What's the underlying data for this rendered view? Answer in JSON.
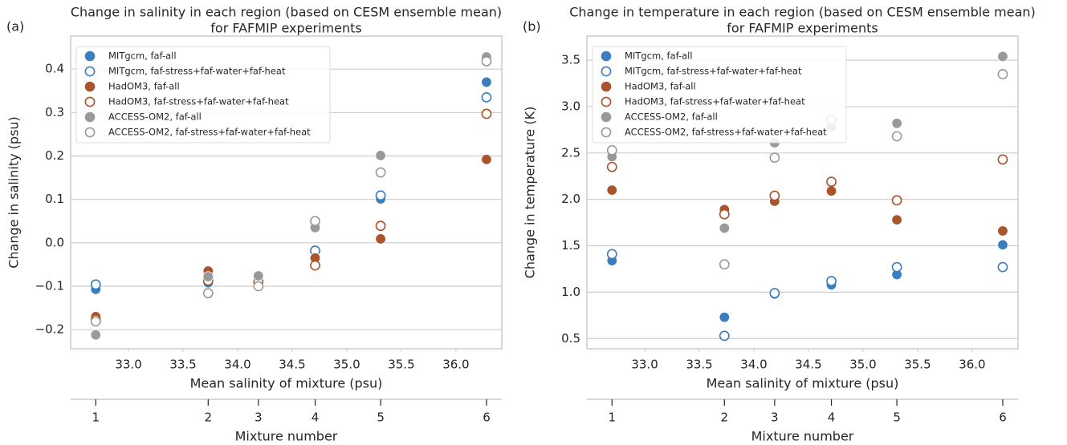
{
  "chart_data": [
    {
      "type": "scatter",
      "panel_label": "(a)",
      "title": [
        "Change in salinity in each region (based on CESM ensemble mean)",
        "for FAFMIP experiments"
      ],
      "xlabel": "Mean salinity of mixture (psu)",
      "ylabel": "Change in salinity (psu)",
      "x2label": "Mixture number",
      "x": [
        32.7,
        33.73,
        34.19,
        34.71,
        35.31,
        36.28
      ],
      "xlim": [
        32.47,
        36.42
      ],
      "xticks": [
        {
          "value": 33,
          "label": "33.0"
        },
        33.5,
        {
          "value": 34,
          "label": "34.0"
        },
        34.5,
        {
          "value": 35,
          "label": "35.0"
        },
        35.5,
        {
          "value": 36,
          "label": "36.0"
        }
      ],
      "x2ticks": [
        {
          "value": 32.7,
          "label": "1"
        },
        {
          "value": 33.73,
          "label": "2"
        },
        {
          "value": 34.19,
          "label": "3"
        },
        {
          "value": 34.71,
          "label": "4"
        },
        {
          "value": 35.31,
          "label": "5"
        },
        {
          "value": 36.28,
          "label": "6"
        }
      ],
      "ylim": [
        -0.244,
        0.476
      ],
      "yticks": [
        {
          "value": -0.2,
          "label": "−0.2"
        },
        {
          "value": -0.1,
          "label": "−0.1"
        },
        {
          "value": 0,
          "label": "0.0"
        },
        0.1,
        0.2,
        0.3,
        0.4
      ],
      "grid": true,
      "legend": "upper left",
      "series": [
        {
          "name": "MITgcm, faf-all",
          "color": "#3a7ebf",
          "marker": "filled",
          "values": [
            -0.107,
            -0.092,
            -0.078,
            -0.035,
            0.101,
            0.37
          ]
        },
        {
          "name": "MITgcm, faf-stress+faf-water+faf-heat",
          "color": "#3a7ebf",
          "marker": "open",
          "values": [
            -0.096,
            -0.083,
            -0.078,
            -0.018,
            0.109,
            0.335
          ]
        },
        {
          "name": "HadOM3, faf-all",
          "color": "#a9542a",
          "marker": "filled",
          "values": [
            -0.17,
            -0.065,
            -0.087,
            -0.035,
            0.009,
            0.192
          ]
        },
        {
          "name": "HadOM3, faf-stress+faf-water+faf-heat",
          "color": "#a9542a",
          "marker": "open",
          "values": [
            -0.177,
            -0.087,
            -0.09,
            -0.052,
            0.039,
            0.297
          ]
        },
        {
          "name": "ACCESS-OM2, faf-all",
          "color": "#999999",
          "marker": "filled",
          "values": [
            -0.212,
            -0.078,
            -0.076,
            0.035,
            0.201,
            0.428
          ]
        },
        {
          "name": "ACCESS-OM2, faf-stress+faf-water+faf-heat",
          "color": "#999999",
          "marker": "open",
          "values": [
            -0.181,
            -0.116,
            -0.1,
            0.05,
            0.162,
            0.418
          ]
        }
      ]
    },
    {
      "type": "scatter",
      "panel_label": "(b)",
      "title": [
        "Change in temperature in each region (based on CESM ensemble mean)",
        "for FAFMIP experiments"
      ],
      "xlabel": "Mean salinity of mixture (psu)",
      "ylabel": "Change in temperature (K)",
      "x2label": "Mixture number",
      "x": [
        32.7,
        33.73,
        34.19,
        34.71,
        35.31,
        36.28
      ],
      "xlim": [
        32.47,
        36.42
      ],
      "xticks": [
        {
          "value": 33,
          "label": "33.0"
        },
        33.5,
        {
          "value": 34,
          "label": "34.0"
        },
        34.5,
        {
          "value": 35,
          "label": "35.0"
        },
        35.5,
        {
          "value": 36,
          "label": "36.0"
        }
      ],
      "x2ticks": [
        {
          "value": 32.7,
          "label": "1"
        },
        {
          "value": 33.73,
          "label": "2"
        },
        {
          "value": 34.19,
          "label": "3"
        },
        {
          "value": 34.71,
          "label": "4"
        },
        {
          "value": 35.31,
          "label": "5"
        },
        {
          "value": 36.28,
          "label": "6"
        }
      ],
      "ylim": [
        0.39,
        3.76
      ],
      "yticks": [
        0.5,
        {
          "value": 1,
          "label": "1.0"
        },
        1.5,
        {
          "value": 2,
          "label": "2.0"
        },
        2.5,
        {
          "value": 3,
          "label": "3.0"
        },
        3.5
      ],
      "grid": true,
      "legend": "upper left",
      "series": [
        {
          "name": "MITgcm, faf-all",
          "color": "#3a7ebf",
          "marker": "filled",
          "values": [
            1.34,
            0.73,
            0.98,
            1.08,
            1.19,
            1.51
          ]
        },
        {
          "name": "MITgcm, faf-stress+faf-water+faf-heat",
          "color": "#3a7ebf",
          "marker": "open",
          "values": [
            1.41,
            0.53,
            0.99,
            1.12,
            1.27,
            1.27
          ]
        },
        {
          "name": "HadOM3, faf-all",
          "color": "#a9542a",
          "marker": "filled",
          "values": [
            2.1,
            1.89,
            1.98,
            2.09,
            1.78,
            1.66
          ]
        },
        {
          "name": "HadOM3, faf-stress+faf-water+faf-heat",
          "color": "#a9542a",
          "marker": "open",
          "values": [
            2.35,
            1.84,
            2.04,
            2.19,
            1.99,
            2.43
          ]
        },
        {
          "name": "ACCESS-OM2, faf-all",
          "color": "#999999",
          "marker": "filled",
          "values": [
            2.46,
            1.69,
            2.61,
            2.78,
            2.82,
            3.54
          ]
        },
        {
          "name": "ACCESS-OM2, faf-stress+faf-water+faf-heat",
          "color": "#999999",
          "marker": "open",
          "values": [
            2.53,
            1.3,
            2.45,
            2.86,
            2.68,
            3.35
          ]
        }
      ]
    }
  ]
}
